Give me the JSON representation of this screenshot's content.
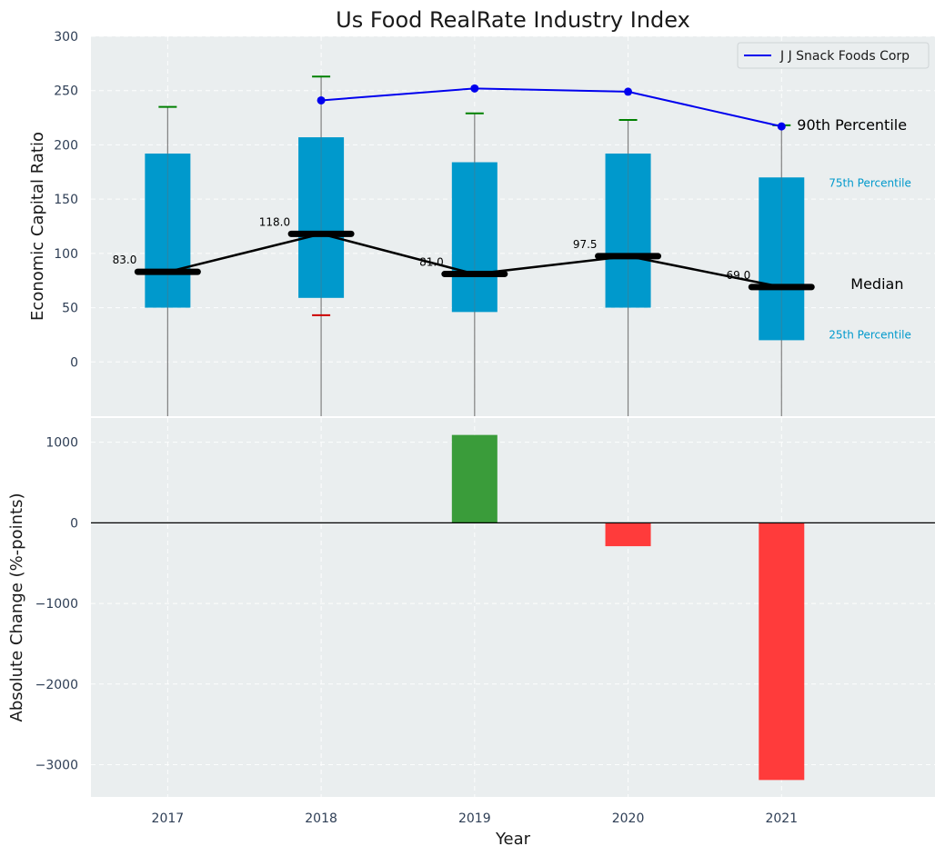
{
  "chart_data": [
    {
      "type": "box",
      "title": "Us Food RealRate Industry Index",
      "ylabel": "Economic Capital Ratio",
      "ylim": [
        -50,
        300
      ],
      "yticks": [
        0,
        50,
        100,
        150,
        200,
        250,
        300
      ],
      "grid": true,
      "categories": [
        "2017",
        "2018",
        "2019",
        "2020",
        "2021"
      ],
      "percentiles": {
        "p25": [
          50,
          59,
          46,
          50,
          20
        ],
        "median": [
          83.0,
          118.0,
          81.0,
          97.5,
          69.0
        ],
        "p75": [
          192,
          207,
          184,
          192,
          170
        ],
        "p90": [
          235,
          263,
          229,
          223,
          218
        ],
        "p10": [
          null,
          43,
          null,
          null,
          null
        ]
      },
      "median_labels": [
        "83.0",
        "118.0",
        "81.0",
        "97.5",
        "69.0"
      ],
      "series": [
        {
          "name": "J J Snack Foods Corp",
          "color": "#0000ee",
          "x": [
            "2018",
            "2019",
            "2020",
            "2021"
          ],
          "values": [
            241,
            252,
            249,
            217
          ]
        }
      ],
      "annotations": {
        "p90": "90th Percentile",
        "p75": "75th Percentile",
        "median": "Median",
        "p25": "25th Percentile"
      },
      "legend_position": "top-right",
      "colors": {
        "box": "#0099cc",
        "p90_marker": "#008000",
        "p10_marker": "#cc0000",
        "median": "#000000",
        "whisker": "#808080"
      }
    },
    {
      "type": "bar",
      "xlabel": "Year",
      "ylabel": "Absolute Change (%-points)",
      "ylim": [
        -3400,
        1300
      ],
      "yticks": [
        -3000,
        -2000,
        -1000,
        0,
        1000
      ],
      "categories": [
        "2017",
        "2018",
        "2019",
        "2020",
        "2021"
      ],
      "values": [
        null,
        null,
        1090,
        -290,
        -3190
      ],
      "colors": {
        "positive": "#3a9c3a",
        "negative": "#ff3b3b"
      }
    }
  ]
}
